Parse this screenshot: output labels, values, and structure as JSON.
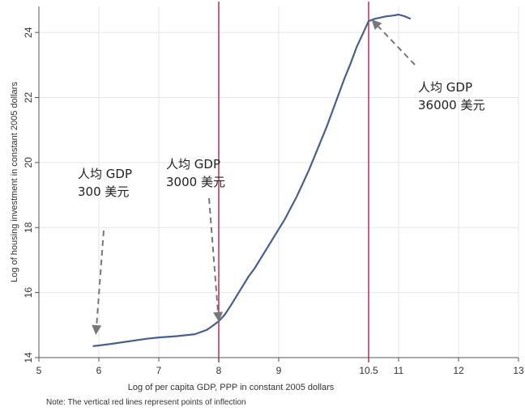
{
  "chart_data": {
    "type": "line",
    "xlabel": "Log of per capita GDP, PPP in constant 2005 dollars",
    "ylabel": "Log of housing investment in constant 2005 dollars",
    "note": "Note: The vertical red lines represent points of inflection",
    "xlim": [
      5,
      13
    ],
    "ylim": [
      14,
      24.8
    ],
    "x_ticks": [
      5,
      6,
      7,
      8,
      9,
      10.5,
      11,
      12,
      13
    ],
    "x_tick_labels": [
      "5",
      "6",
      "7",
      "8",
      "9",
      "10.5",
      "11",
      "12",
      "13"
    ],
    "y_ticks": [
      14,
      16,
      18,
      20,
      22,
      24
    ],
    "y_tick_labels": [
      "14",
      "16",
      "18",
      "20",
      "22",
      "24"
    ],
    "grid": true,
    "vlines": [
      8,
      10.5
    ],
    "colors": {
      "line": "#4a5f8c",
      "vline": "#c8285a",
      "arrow": "#777777",
      "grid": "#e6e6e6"
    },
    "series": [
      {
        "x": [
          5.9,
          6.2,
          6.5,
          6.8,
          7.0,
          7.3,
          7.6,
          7.8,
          7.9,
          8.0,
          8.1,
          8.2,
          8.3,
          8.4,
          8.5,
          8.6,
          8.7,
          8.8,
          8.9,
          9.0,
          9.1,
          9.2,
          9.3,
          9.4,
          9.5,
          9.6,
          9.7,
          9.8,
          9.9,
          10.0,
          10.1,
          10.2,
          10.3,
          10.4,
          10.5,
          10.6,
          10.7,
          10.8,
          10.9,
          11.0,
          11.1,
          11.2
        ],
        "y": [
          14.35,
          14.42,
          14.5,
          14.58,
          14.62,
          14.66,
          14.72,
          14.85,
          14.98,
          15.12,
          15.32,
          15.6,
          15.9,
          16.2,
          16.5,
          16.75,
          17.05,
          17.35,
          17.65,
          17.95,
          18.25,
          18.6,
          18.95,
          19.35,
          19.75,
          20.2,
          20.65,
          21.1,
          21.6,
          22.1,
          22.6,
          23.05,
          23.55,
          23.95,
          24.35,
          24.42,
          24.46,
          24.5,
          24.52,
          24.55,
          24.5,
          24.42
        ]
      }
    ],
    "annotations": [
      {
        "line1": "人均 GDP",
        "line2": "300 美元",
        "x": 5.95,
        "y": 14.7
      },
      {
        "line1": "人均 GDP",
        "line2": "3000 美元",
        "x": 8.0,
        "y": 15.1
      },
      {
        "line1": "人均 GDP",
        "line2": "36000 美元",
        "x": 10.55,
        "y": 24.4
      }
    ]
  }
}
